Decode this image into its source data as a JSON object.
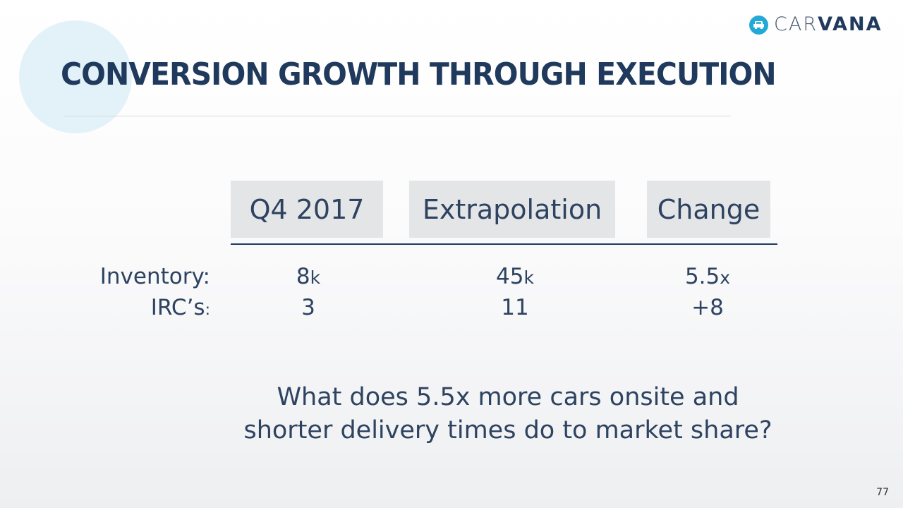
{
  "brand": {
    "logo_text_light": "CAR",
    "logo_text_bold": "VANA",
    "accent": "#22a9d8",
    "primary": "#1f3a5c"
  },
  "title": "CONVERSION GROWTH THROUGH EXECUTION",
  "table": {
    "headers": [
      "Q4 2017",
      "Extrapolation",
      "Change"
    ],
    "rows": [
      {
        "label": "Inventory",
        "label_suffix": ":",
        "q4_value": "8",
        "q4_unit": "k",
        "ext_value": "45",
        "ext_unit": "k",
        "change_value": "5.5",
        "change_unit": "x"
      },
      {
        "label": "IRC’s",
        "label_suffix": ":",
        "q4_value": "3",
        "ext_value": "11",
        "change_value": "+8"
      }
    ]
  },
  "question": {
    "line1": "What does 5.5x more cars onsite and",
    "line2": "shorter delivery times do to market share?"
  },
  "page_number": "77"
}
